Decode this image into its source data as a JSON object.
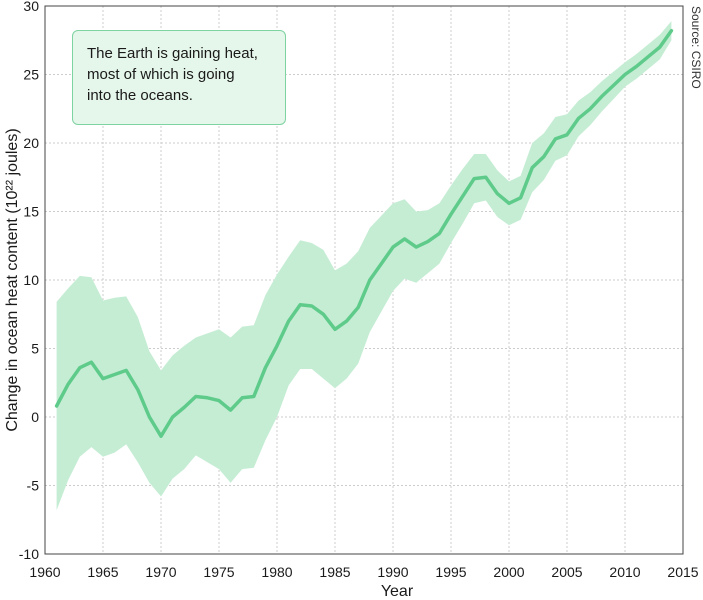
{
  "chart_data": {
    "type": "area",
    "xlabel": "Year",
    "ylabel": "Change in ocean heat content (10²² joules)",
    "xlim": [
      1960,
      2015
    ],
    "ylim": [
      -10,
      30
    ],
    "xticks": [
      "1960",
      "1965",
      "1970",
      "1975",
      "1980",
      "1985",
      "1990",
      "1995",
      "2000",
      "2005",
      "2010",
      "2015"
    ],
    "yticks": [
      "30",
      "25",
      "20",
      "15",
      "10",
      "5",
      "0",
      "-5",
      "-10"
    ],
    "grid": true,
    "annotation": [
      "The Earth is gaining heat,",
      "most of which is going",
      "into the oceans."
    ],
    "source": "Source: CSIRO",
    "colors": {
      "line": "#5fcb8b",
      "band": "#c5edd4",
      "grid": "#cccccc",
      "box_fill": "#e5f6ea",
      "box_border": "#7ed3a1"
    },
    "series": [
      {
        "x": [
          1961,
          1962,
          1963,
          1964,
          1965,
          1966,
          1967,
          1968,
          1969,
          1970,
          1971,
          1972,
          1973,
          1974,
          1975,
          1976,
          1977,
          1978,
          1979,
          1980,
          1981,
          1982,
          1983,
          1984,
          1985,
          1986,
          1987,
          1988,
          1989,
          1990,
          1991,
          1992,
          1993,
          1994,
          1995,
          1996,
          1997,
          1998,
          1999,
          2000,
          2001,
          2002,
          2003,
          2004,
          2005,
          2006,
          2007,
          2008,
          2009,
          2010,
          2011,
          2012,
          2013,
          2014
        ],
        "y": [
          0.8,
          2.4,
          3.6,
          4.0,
          2.8,
          3.1,
          3.4,
          2.0,
          0.0,
          -1.4,
          0.0,
          0.7,
          1.5,
          1.4,
          1.2,
          0.5,
          1.4,
          1.5,
          3.6,
          5.2,
          7.0,
          8.2,
          8.1,
          7.5,
          6.4,
          7.0,
          8.0,
          10.0,
          11.2,
          12.4,
          13.0,
          12.4,
          12.8,
          13.4,
          14.8,
          16.1,
          17.4,
          17.5,
          16.3,
          15.6,
          16.0,
          18.2,
          19.0,
          20.3,
          20.6,
          21.8,
          22.5,
          23.4,
          24.2,
          25.0,
          25.6,
          26.3,
          27.0,
          28.2
        ],
        "upper": [
          8.4,
          9.4,
          10.3,
          10.2,
          8.5,
          8.7,
          8.8,
          7.3,
          4.8,
          3.4,
          4.5,
          5.2,
          5.8,
          6.1,
          6.4,
          5.8,
          6.6,
          6.7,
          8.9,
          10.4,
          11.7,
          12.9,
          12.7,
          12.2,
          10.7,
          11.2,
          12.1,
          13.8,
          14.7,
          15.6,
          15.9,
          15.0,
          15.1,
          15.6,
          16.9,
          18.1,
          19.2,
          19.2,
          18.0,
          17.2,
          17.6,
          20.0,
          20.7,
          21.9,
          22.1,
          23.1,
          23.7,
          24.5,
          25.2,
          25.9,
          26.5,
          27.2,
          27.9,
          28.9
        ],
        "lower": [
          -6.8,
          -4.6,
          -2.9,
          -2.2,
          -2.9,
          -2.6,
          -2.0,
          -3.3,
          -4.8,
          -5.8,
          -4.5,
          -3.8,
          -2.8,
          -3.3,
          -3.8,
          -4.8,
          -3.8,
          -3.7,
          -1.7,
          0.0,
          2.3,
          3.5,
          3.5,
          2.8,
          2.1,
          2.8,
          3.9,
          6.2,
          7.7,
          9.2,
          10.1,
          9.8,
          10.5,
          11.2,
          12.7,
          14.1,
          15.6,
          15.8,
          14.6,
          14.0,
          14.4,
          16.4,
          17.3,
          18.7,
          19.1,
          20.5,
          21.3,
          22.3,
          23.2,
          24.1,
          24.7,
          25.4,
          26.1,
          27.5
        ]
      }
    ]
  }
}
